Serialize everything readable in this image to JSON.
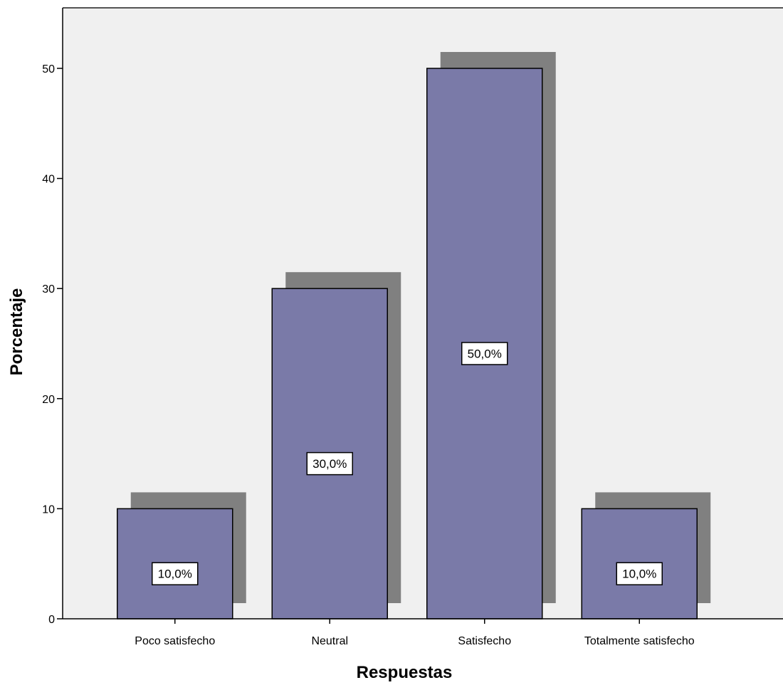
{
  "chart_data": {
    "type": "bar",
    "categories": [
      "Poco satisfecho",
      "Neutral",
      "Satisfecho",
      "Totalmente satisfecho"
    ],
    "values": [
      10,
      30,
      50,
      10
    ],
    "data_labels": [
      "10,0%",
      "30,0%",
      "50,0%",
      "10,0%"
    ],
    "xlabel": "Respuestas",
    "ylabel": "Porcentaje",
    "ylim": [
      0,
      55
    ],
    "yticks": [
      0,
      10,
      20,
      30,
      40,
      50
    ],
    "grid": false,
    "legend": "none",
    "colors": {
      "bar_fill": "#7a7aa8",
      "bar_shadow": "#808080",
      "plot_background": "#f0f0f0"
    }
  }
}
